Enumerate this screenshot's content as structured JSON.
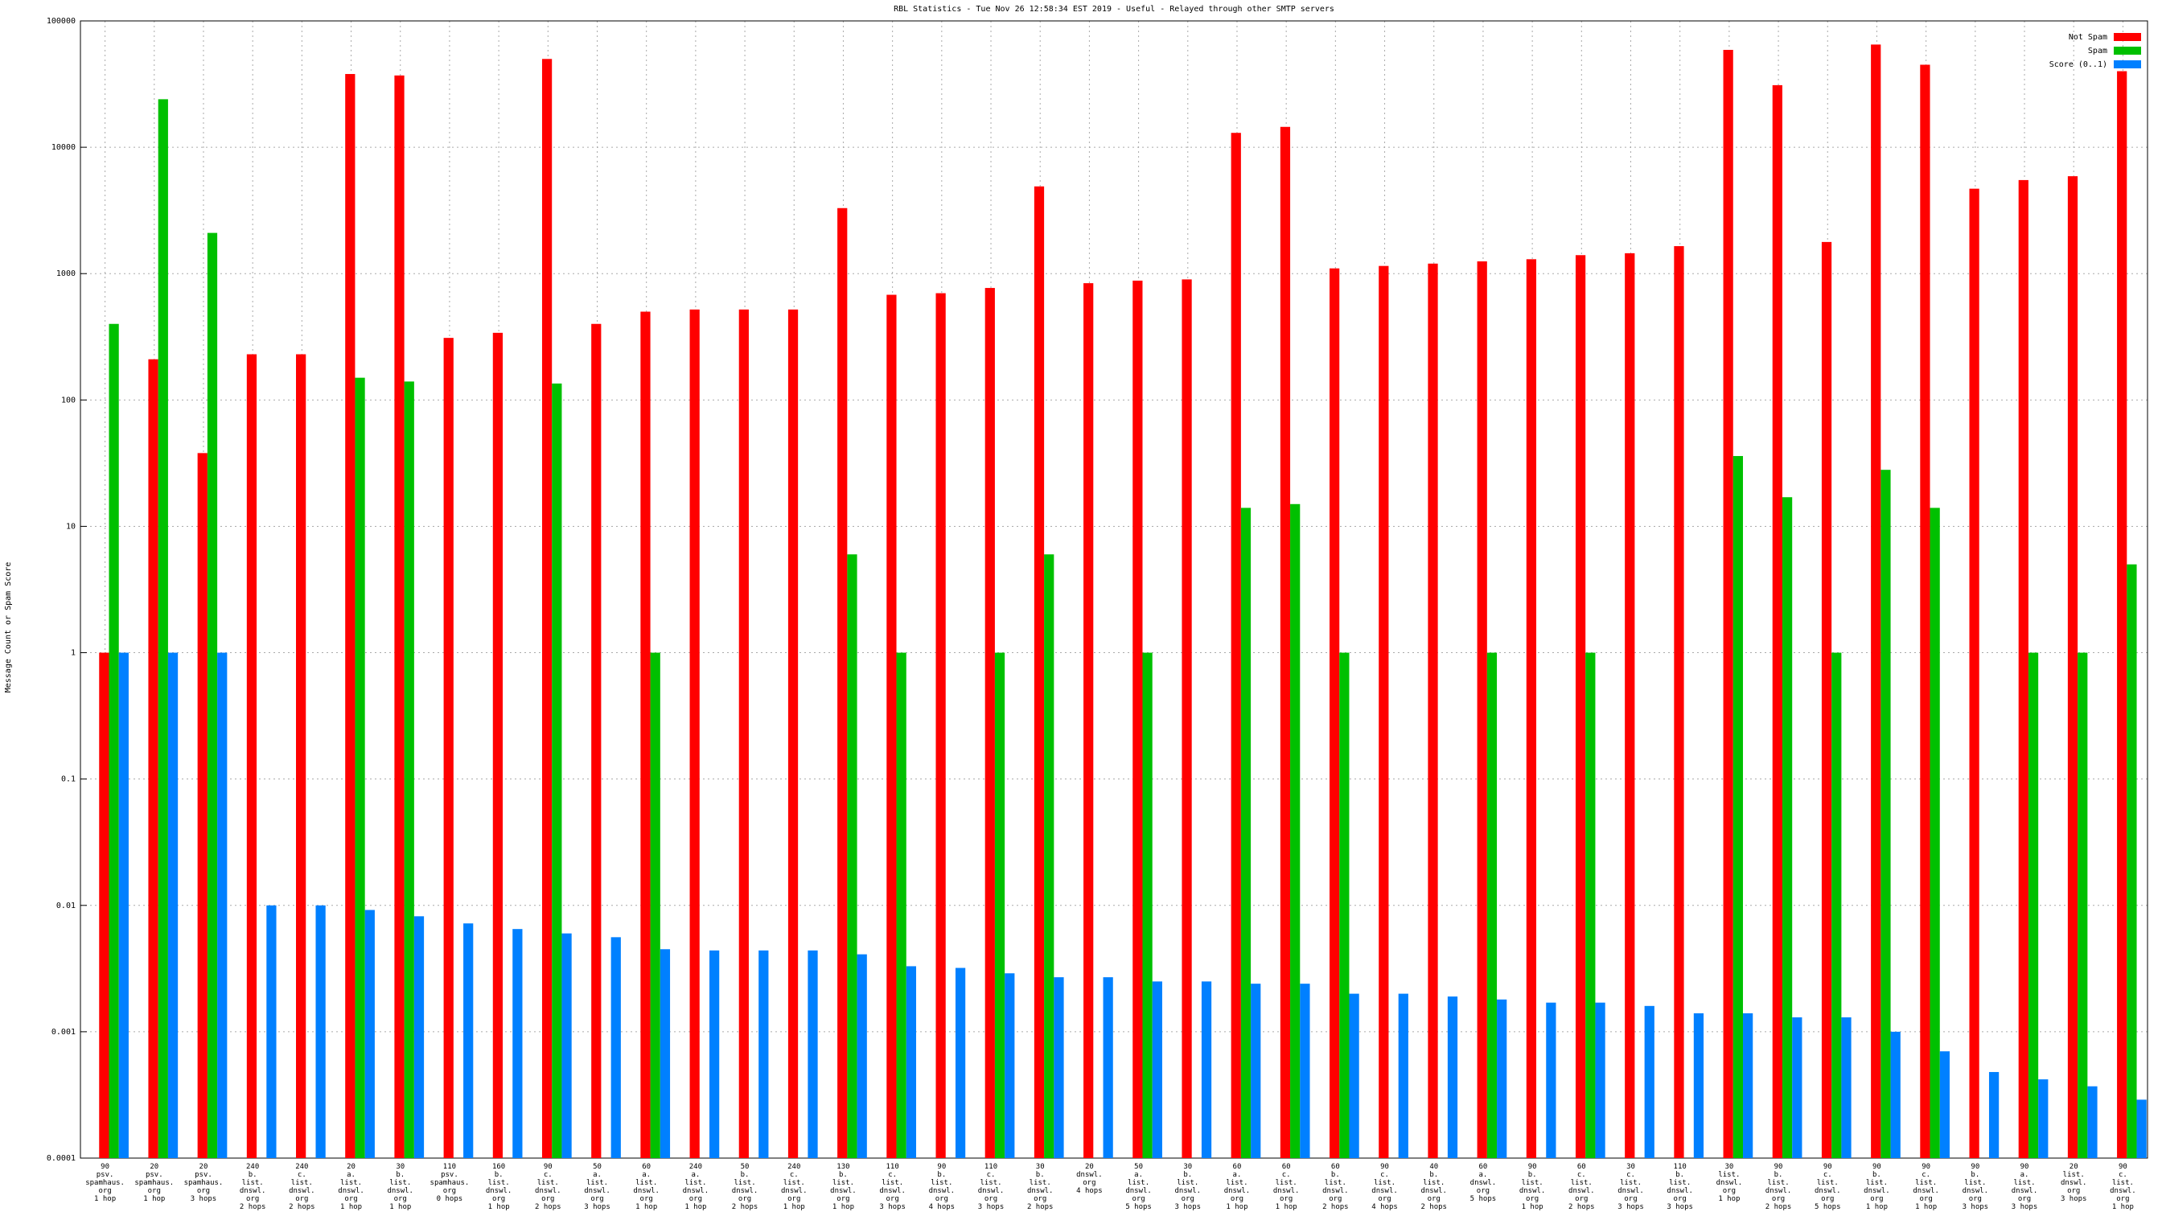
{
  "chart_data": {
    "type": "bar",
    "title": "RBL Statistics - Tue Nov 26 12:58:34 EST 2019 - Useful - Relayed through other SMTP servers",
    "y_label": "Message Count or Spam Score",
    "log_y": true,
    "grid": true,
    "legend_position": "top-right",
    "ylim": [
      0.0001,
      100000
    ],
    "yticks": [
      0.0001,
      0.001,
      0.01,
      0.1,
      1,
      10,
      100,
      1000,
      10000,
      100000
    ],
    "categories": [
      "90\npsv.\nspamhaus.\norg\n1 hop",
      "20\npsv.\nspamhaus.\norg\n1 hop",
      "20\npsv.\nspamhaus.\norg\n3 hops",
      "240\nb.\nlist.\ndnswl.\norg\n2 hops",
      "240\nc.\nlist.\ndnswl.\norg\n2 hops",
      "20\na.\nlist.\ndnswl.\norg\n1 hop",
      "30\nb.\nlist.\ndnswl.\norg\n1 hop",
      "110\npsv.\nspamhaus.\norg\n0 hops",
      "160\nb.\nlist.\ndnswl.\norg\n1 hop",
      "90\nc.\nlist.\ndnswl.\norg\n2 hops",
      "50\na.\nlist.\ndnswl.\norg\n3 hops",
      "60\na.\nlist.\ndnswl.\norg\n1 hop",
      "240\na.\nlist.\ndnswl.\norg\n1 hop",
      "50\nb.\nlist.\ndnswl.\norg\n2 hops",
      "240\nc.\nlist.\ndnswl.\norg\n1 hop",
      "130\nb.\nlist.\ndnswl.\norg\n1 hop",
      "110\nc.\nlist.\ndnswl.\norg\n3 hops",
      "90\nb.\nlist.\ndnswl.\norg\n4 hops",
      "110\nc.\nlist.\ndnswl.\norg\n3 hops",
      "30\nb.\nlist.\ndnswl.\norg\n2 hops",
      "20\ndnswl.\norg\n4 hops",
      "50\na.\nlist.\ndnswl.\norg\n5 hops",
      "30\nb.\nlist.\ndnswl.\norg\n3 hops",
      "60\na.\nlist.\ndnswl.\norg\n1 hop",
      "60\nc.\nlist.\ndnswl.\norg\n1 hop",
      "60\nb.\nlist.\ndnswl.\norg\n2 hops",
      "90\nc.\nlist.\ndnswl.\norg\n4 hops",
      "40\nb.\nlist.\ndnswl.\norg\n2 hops",
      "60\na.\ndnswl.\norg\n5 hops",
      "90\nb.\nlist.\ndnswl.\norg\n1 hop",
      "60\nc.\nlist.\ndnswl.\norg\n2 hops",
      "30\nc.\nlist.\ndnswl.\norg\n3 hops",
      "110\nb.\nlist.\ndnswl.\norg\n3 hops",
      "30\nlist.\ndnswl.\norg\n1 hop",
      "90\nb.\nlist.\ndnswl.\norg\n2 hops",
      "90\nc.\nlist.\ndnswl.\norg\n5 hops",
      "90\nb.\nlist.\ndnswl.\norg\n1 hop",
      "90\nc.\nlist.\ndnswl.\norg\n1 hop",
      "90\nb.\nlist.\ndnswl.\norg\n3 hops",
      "90\na.\nlist.\ndnswl.\norg\n3 hops",
      "20\nlist.\ndnswl.\norg\n3 hops",
      "90\nc.\nlist.\ndnswl.\norg\n1 hop"
    ],
    "series": [
      {
        "name": "Not Spam",
        "color": "#ff0000",
        "values": [
          1,
          210,
          38,
          230,
          230,
          38000,
          37000,
          310,
          340,
          50000,
          400,
          500,
          520,
          520,
          520,
          3300,
          680,
          700,
          770,
          4900,
          840,
          880,
          900,
          13000,
          14500,
          1100,
          1150,
          1200,
          1250,
          1300,
          1400,
          1450,
          1650,
          59000,
          31000,
          1780,
          65000,
          45000,
          4700,
          5500,
          5900,
          40000
        ]
      },
      {
        "name": "Spam",
        "color": "#00c000",
        "values": [
          400,
          24000,
          2100,
          null,
          null,
          150,
          140,
          null,
          null,
          135,
          null,
          1,
          null,
          null,
          null,
          6,
          1,
          null,
          1,
          6,
          null,
          1,
          null,
          14,
          15,
          1,
          null,
          null,
          1,
          null,
          1,
          null,
          null,
          36,
          17,
          1,
          28,
          14,
          null,
          1,
          1,
          5
        ]
      },
      {
        "name": "Score (0..1)",
        "color": "#0080ff",
        "values": [
          1,
          1,
          1,
          0.01,
          0.01,
          0.0092,
          0.0082,
          0.0072,
          0.0065,
          0.006,
          0.0056,
          0.0045,
          0.0044,
          0.0044,
          0.0044,
          0.0041,
          0.0033,
          0.0032,
          0.0029,
          0.0027,
          0.0027,
          0.0025,
          0.0025,
          0.0024,
          0.0024,
          0.002,
          0.002,
          0.0019,
          0.0018,
          0.0017,
          0.0017,
          0.0016,
          0.0014,
          0.0014,
          0.0013,
          0.0013,
          0.001,
          0.0007,
          0.00048,
          0.00042,
          0.00037,
          0.00029
        ]
      }
    ]
  }
}
